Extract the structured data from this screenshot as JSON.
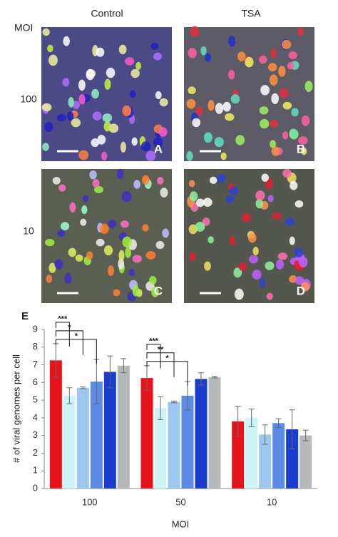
{
  "figure": {
    "columns": [
      "Control",
      "TSA"
    ],
    "moi_label": "MOI",
    "rows": [
      "100",
      "10"
    ],
    "panels": [
      "A",
      "B",
      "C",
      "D"
    ]
  },
  "chart_data": {
    "type": "bar",
    "panel": "E",
    "ylabel": "# of viral genomes per cell",
    "xlabel": "MOI",
    "categories": [
      "100",
      "50",
      "10"
    ],
    "ylim": [
      0,
      9
    ],
    "yticks": [
      0,
      1,
      2,
      3,
      4,
      5,
      6,
      7,
      8,
      9
    ],
    "series": [
      {
        "color": "#e8141b",
        "values": [
          7.25,
          6.25,
          3.8
        ],
        "errors": [
          0.95,
          0.7,
          0.85
        ]
      },
      {
        "color": "#cdf4f8",
        "values": [
          5.25,
          4.55,
          4.0
        ],
        "errors": [
          0.45,
          0.65,
          0.5
        ]
      },
      {
        "color": "#9dc7f0",
        "values": [
          5.7,
          4.9,
          3.05
        ],
        "errors": [
          0.05,
          0.05,
          0.55
        ]
      },
      {
        "color": "#5b8be6",
        "values": [
          6.05,
          5.25,
          3.7
        ],
        "errors": [
          1.25,
          0.8,
          0.25
        ]
      },
      {
        "color": "#1a3ccf",
        "values": [
          6.6,
          6.2,
          3.35
        ],
        "errors": [
          0.9,
          0.35,
          1.1
        ]
      },
      {
        "color": "#b5b9b9",
        "values": [
          6.95,
          6.3,
          3.0
        ],
        "errors": [
          0.4,
          0.05,
          0.3
        ]
      }
    ],
    "annotations": [
      "***",
      "*",
      "*",
      "***",
      "**",
      "*"
    ]
  }
}
